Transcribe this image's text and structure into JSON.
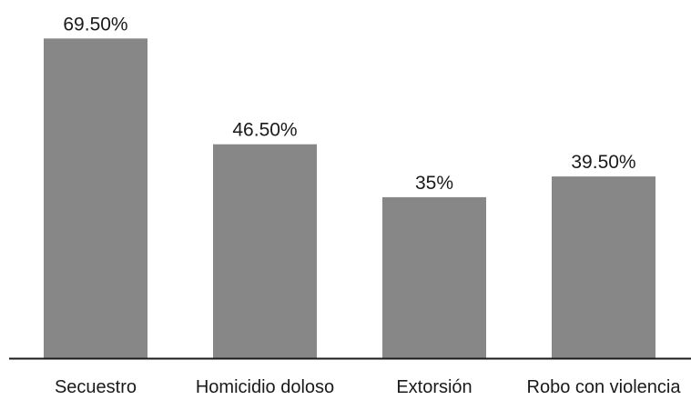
{
  "chart_data": {
    "type": "bar",
    "categories": [
      "Secuestro",
      "Homicidio doloso",
      "Extorsión",
      "Robo con violencia"
    ],
    "values": [
      69.5,
      46.5,
      35,
      39.5
    ],
    "value_labels": [
      "69.50%",
      "46.50%",
      "35%",
      "39.50%"
    ],
    "ylim": [
      0,
      100
    ],
    "grid": false,
    "bar_color": "#878787",
    "axis_color": "#1a1a1a"
  }
}
